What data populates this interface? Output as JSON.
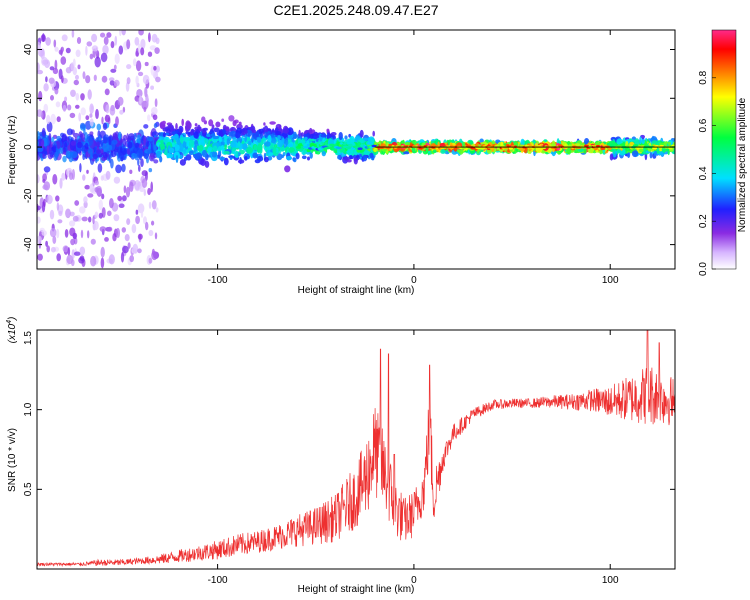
{
  "figure_title": "C2E1.2025.248.09.47.E27",
  "chart_data": [
    {
      "type": "heatmap",
      "title": "C2E1.2025.248.09.47.E27",
      "xlabel": "Height of straight line (km)",
      "ylabel": "Frequency (Hz)",
      "xlim": [
        -192,
        133
      ],
      "ylim": [
        -50,
        48
      ],
      "x_ticks": [
        -100,
        0,
        100
      ],
      "y_ticks": [
        -40,
        -20,
        0,
        20,
        40
      ],
      "grid": false,
      "colorbar": {
        "label": "Normalized spectral amplitude",
        "range": [
          0,
          1
        ],
        "ticks": [
          "0.0",
          "0.2",
          "0.4",
          "0.6",
          "0.8"
        ],
        "colormap": "rainbow",
        "colors": [
          "#ffffff",
          "#d6b4ff",
          "#8a2be2",
          "#2020ff",
          "#00e0ff",
          "#00ff40",
          "#ffff00",
          "#ff8000",
          "#ff0000",
          "#ff2a8a"
        ]
      },
      "reference_line": {
        "y": 0,
        "x_from": -20,
        "x_to": 133,
        "color": "#000000"
      },
      "regions": [
        {
          "x_from": -192,
          "x_to": -130,
          "freq_spread": 48,
          "amplitude": 0.15
        },
        {
          "x_from": -130,
          "x_to": -60,
          "freq_spread": 12,
          "amplitude": 0.35
        },
        {
          "x_from": -60,
          "x_to": -20,
          "freq_spread": 8,
          "amplitude": 0.45
        },
        {
          "x_from": -20,
          "x_to": 100,
          "freq_spread": 3,
          "amplitude": 0.85
        },
        {
          "x_from": 100,
          "x_to": 133,
          "freq_spread": 5,
          "amplitude": 0.6
        }
      ]
    },
    {
      "type": "line",
      "xlabel": "Height of straight line (km)",
      "ylabel": "SNR (10 * v/v)",
      "y_multiplier_label": "(x10",
      "y_multiplier_exp": "4",
      "y_multiplier_close": ")",
      "xlim": [
        -192,
        133
      ],
      "ylim": [
        0,
        1.5
      ],
      "x_ticks": [
        -100,
        0,
        100
      ],
      "y_ticks": [
        "0.5",
        "1.0",
        "1.5"
      ],
      "y_tick_values": [
        0.5,
        1.0,
        1.5
      ],
      "grid": false,
      "series": [
        {
          "color": "#ee3030",
          "x": [
            -192,
            -180,
            -170,
            -160,
            -150,
            -140,
            -130,
            -120,
            -110,
            -100,
            -90,
            -80,
            -70,
            -60,
            -50,
            -40,
            -30,
            -25,
            -20,
            -15,
            -10,
            -5,
            0,
            5,
            8,
            10,
            15,
            20,
            30,
            40,
            50,
            60,
            70,
            80,
            90,
            100,
            110,
            120,
            133
          ],
          "y": [
            0.03,
            0.03,
            0.03,
            0.04,
            0.04,
            0.05,
            0.06,
            0.08,
            0.1,
            0.12,
            0.15,
            0.17,
            0.2,
            0.24,
            0.27,
            0.32,
            0.45,
            0.55,
            0.75,
            0.6,
            0.4,
            0.3,
            0.35,
            0.5,
            0.9,
            0.45,
            0.7,
            0.85,
            0.97,
            1.03,
            1.04,
            1.04,
            1.05,
            1.05,
            1.06,
            1.05,
            1.07,
            1.1,
            1.05
          ],
          "noise": [
            0.01,
            0.01,
            0.01,
            0.02,
            0.02,
            0.02,
            0.03,
            0.04,
            0.05,
            0.06,
            0.07,
            0.07,
            0.08,
            0.1,
            0.12,
            0.15,
            0.2,
            0.25,
            0.3,
            0.25,
            0.2,
            0.15,
            0.15,
            0.15,
            0.25,
            0.2,
            0.08,
            0.06,
            0.04,
            0.03,
            0.03,
            0.03,
            0.04,
            0.05,
            0.07,
            0.1,
            0.15,
            0.2,
            0.15
          ],
          "spikes": [
            {
              "x": -17,
              "y": 1.38
            },
            {
              "x": -13,
              "y": 1.35
            },
            {
              "x": -10,
              "y": 0.72
            },
            {
              "x": 8,
              "y": 1.28
            },
            {
              "x": 119,
              "y": 1.52
            },
            {
              "x": 125,
              "y": 1.42
            }
          ]
        }
      ]
    }
  ]
}
